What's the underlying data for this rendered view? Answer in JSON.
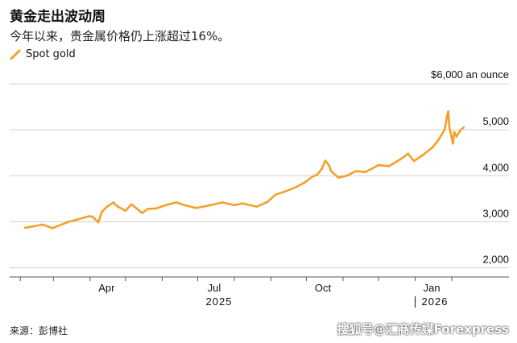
{
  "header": {
    "title": "黄金走出波动周",
    "subtitle": "今年以来，贵金属价格仍上涨超过16%。"
  },
  "footer": {
    "source": "来源：彭博社",
    "watermark": "搜狐号@汇商传媒Forexpress"
  },
  "colors": {
    "series": "#f5a02a",
    "grid": "#cfcfcf",
    "axis": "#555555"
  },
  "chart_data": {
    "type": "line",
    "title": "黄金走出波动周",
    "subtitle": "今年以来，贵金属价格仍上涨超过16%。",
    "y_unit_label": "$6,000 an ounce",
    "ylim": [
      1800,
      6000
    ],
    "y_ticks": [
      2000,
      3000,
      4000,
      5000
    ],
    "y_tick_labels": [
      "2,000",
      "3,000",
      "4,000",
      "5,000"
    ],
    "x_ticks": [
      "Apr",
      "Jul",
      "Oct",
      "Jan"
    ],
    "year_labels": [
      "2025",
      "2026"
    ],
    "grid": true,
    "legend": "top-left",
    "series": [
      {
        "name": "Spot gold",
        "x": [
          "2025-02-05",
          "2025-02-12",
          "2025-02-20",
          "2025-02-28",
          "2025-03-05",
          "2025-03-14",
          "2025-03-20",
          "2025-03-31",
          "2025-04-03",
          "2025-04-08",
          "2025-04-11",
          "2025-04-16",
          "2025-04-21",
          "2025-04-22",
          "2025-04-25",
          "2025-05-01",
          "2025-05-06",
          "2025-05-09",
          "2025-05-15",
          "2025-05-20",
          "2025-05-27",
          "2025-06-05",
          "2025-06-13",
          "2025-06-20",
          "2025-06-30",
          "2025-07-10",
          "2025-07-22",
          "2025-08-01",
          "2025-08-08",
          "2025-08-20",
          "2025-08-29",
          "2025-09-05",
          "2025-09-12",
          "2025-09-22",
          "2025-09-30",
          "2025-10-06",
          "2025-10-10",
          "2025-10-14",
          "2025-10-17",
          "2025-10-20",
          "2025-10-22",
          "2025-10-28",
          "2025-11-04",
          "2025-11-12",
          "2025-11-20",
          "2025-12-01",
          "2025-12-10",
          "2025-12-19",
          "2025-12-26",
          "2025-12-31",
          "2026-01-08",
          "2026-01-15",
          "2026-01-20",
          "2026-01-26",
          "2026-01-28",
          "2026-01-29",
          "2026-01-30",
          "2026-02-02",
          "2026-02-03",
          "2026-02-05",
          "2026-02-08",
          "2026-02-11"
        ],
        "values": [
          2870,
          2900,
          2940,
          2860,
          2910,
          3000,
          3040,
          3120,
          3110,
          2990,
          3220,
          3340,
          3420,
          3380,
          3320,
          3240,
          3380,
          3320,
          3190,
          3280,
          3290,
          3370,
          3420,
          3360,
          3300,
          3350,
          3420,
          3360,
          3400,
          3330,
          3430,
          3590,
          3650,
          3750,
          3860,
          3980,
          4020,
          4150,
          4330,
          4230,
          4100,
          3960,
          4000,
          4100,
          4080,
          4230,
          4210,
          4350,
          4480,
          4320,
          4460,
          4600,
          4750,
          5000,
          5300,
          5400,
          5050,
          4700,
          4950,
          4850,
          4980,
          5050
        ]
      }
    ]
  }
}
